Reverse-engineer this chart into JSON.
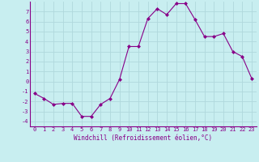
{
  "x": [
    0,
    1,
    2,
    3,
    4,
    5,
    6,
    7,
    8,
    9,
    10,
    11,
    12,
    13,
    14,
    15,
    16,
    17,
    18,
    19,
    20,
    21,
    22,
    23
  ],
  "y": [
    -1.2,
    -1.7,
    -2.3,
    -2.2,
    -2.2,
    -3.5,
    -3.5,
    -2.3,
    -1.7,
    0.2,
    3.5,
    3.5,
    6.3,
    7.3,
    6.7,
    7.8,
    7.8,
    6.2,
    4.5,
    4.5,
    4.8,
    3.0,
    2.5,
    0.3
  ],
  "line_color": "#880088",
  "marker": "D",
  "marker_size": 2,
  "bg_color": "#c8eef0",
  "grid_color": "#b0d8dc",
  "xlabel": "Windchill (Refroidissement éolien,°C)",
  "xlabel_color": "#880088",
  "tick_color": "#880088",
  "spine_color": "#880088",
  "xlim": [
    -0.5,
    23.5
  ],
  "ylim": [
    -4.5,
    8.0
  ],
  "yticks": [
    -4,
    -3,
    -2,
    -1,
    0,
    1,
    2,
    3,
    4,
    5,
    6,
    7
  ],
  "xticks": [
    0,
    1,
    2,
    3,
    4,
    5,
    6,
    7,
    8,
    9,
    10,
    11,
    12,
    13,
    14,
    15,
    16,
    17,
    18,
    19,
    20,
    21,
    22,
    23
  ],
  "tick_fontsize": 5,
  "xlabel_fontsize": 5.5
}
